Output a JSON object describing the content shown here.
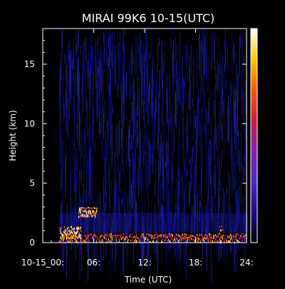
{
  "chart_data": {
    "type": "heatmap",
    "title": "MIRAI 99K6 10-15(UTC)",
    "xlabel": "Time (UTC)",
    "ylabel": "Height (km)",
    "xlim": [
      0,
      24
    ],
    "ylim": [
      0,
      18
    ],
    "x_ticks": [
      {
        "value": 0,
        "label": "10-15_00:"
      },
      {
        "value": 6,
        "label": "06:"
      },
      {
        "value": 12,
        "label": "12:"
      },
      {
        "value": 18,
        "label": "18:"
      },
      {
        "value": 24,
        "label": "24:"
      }
    ],
    "y_ticks": [
      {
        "value": 0,
        "label": "0"
      },
      {
        "value": 5,
        "label": "5"
      },
      {
        "value": 10,
        "label": "10"
      },
      {
        "value": 15,
        "label": "15"
      }
    ],
    "data_start_time": 2.0,
    "background_color": "#000000",
    "noise_color": "#1a1ab4",
    "colormap": [
      "#000000",
      "#1e0a8c",
      "#4b28c8",
      "#8c1eb4",
      "#c81e3c",
      "#ff5a00",
      "#ffc800",
      "#ffffff"
    ],
    "features": [
      {
        "name": "boundary-layer-band",
        "x_range": [
          2.0,
          24
        ],
        "y_range": [
          0.1,
          0.8
        ],
        "intensity": "medium"
      },
      {
        "name": "low-cloud-early",
        "x_range": [
          2.0,
          4.5
        ],
        "y_range": [
          0.4,
          1.4
        ],
        "intensity": "high"
      },
      {
        "name": "elevated-cloud-layer",
        "x_range": [
          4.2,
          6.3
        ],
        "y_range": [
          2.2,
          3.0
        ],
        "intensity": "high"
      },
      {
        "name": "low-cloud-late",
        "x_range": [
          20.8,
          21.2
        ],
        "y_range": [
          0.4,
          1.6
        ],
        "intensity": "medium"
      }
    ]
  }
}
